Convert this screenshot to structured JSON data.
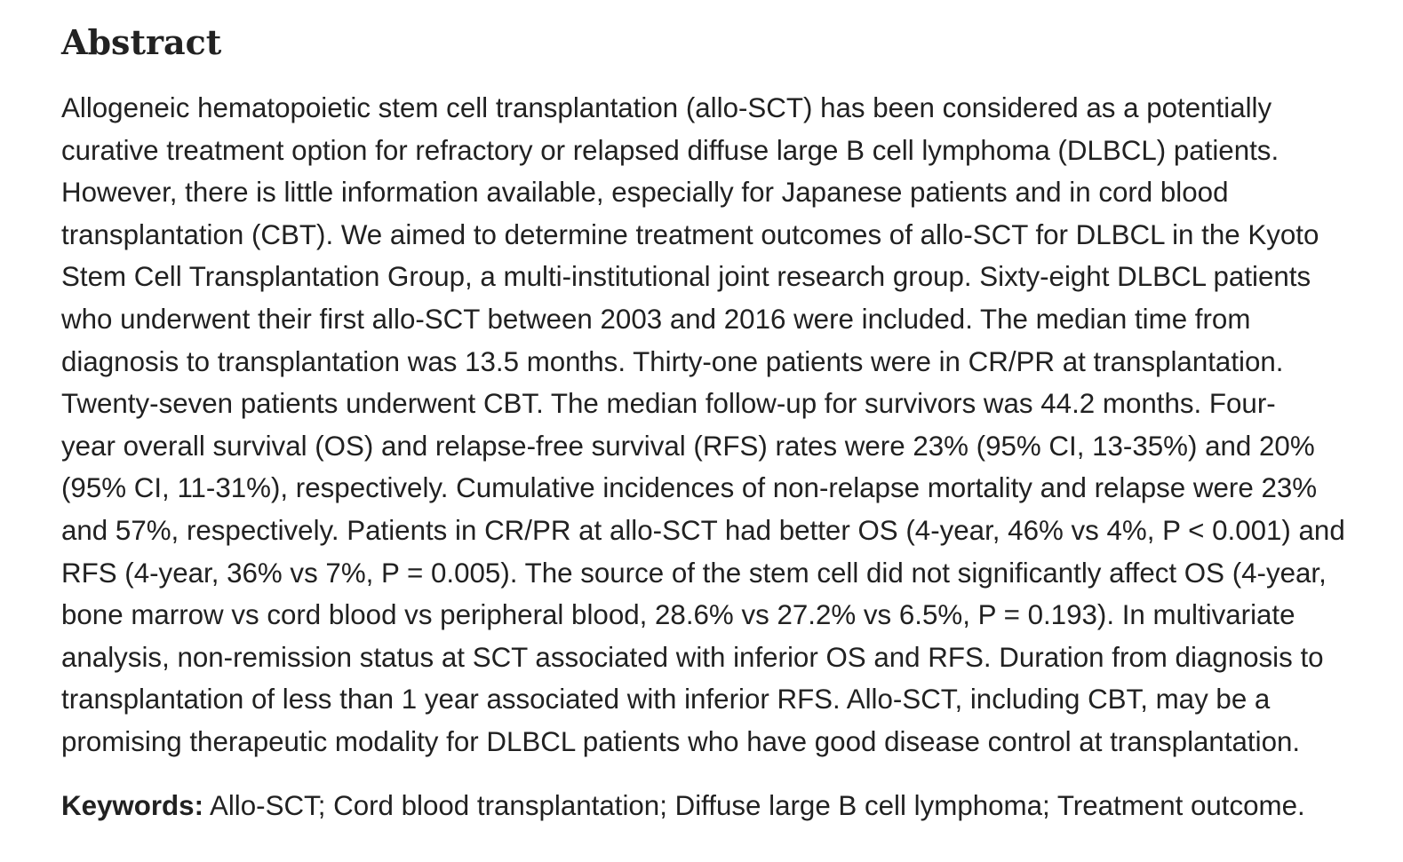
{
  "abstract": {
    "heading": "Abstract",
    "lines": [
      "Allogeneic hematopoietic stem cell transplantation (allo-SCT) has been considered as a potentially",
      "curative treatment option for refractory or relapsed diffuse large B cell lymphoma (DLBCL) patients.",
      "However, there is little information available, especially for Japanese patients and in cord blood",
      "transplantation (CBT). We aimed to determine treatment outcomes of allo-SCT for DLBCL in the Kyoto",
      "Stem Cell Transplantation Group, a multi-institutional joint research group. Sixty-eight DLBCL patients",
      "who underwent their first allo-SCT between 2003 and 2016 were included. The median time from",
      "diagnosis to transplantation was 13.5 months. Thirty-one patients were in CR/PR at transplantation.",
      "Twenty-seven patients underwent CBT. The median follow-up for survivors was 44.2 months. Four-",
      "year overall survival (OS) and relapse-free survival (RFS) rates were 23% (95% CI, 13-35%) and 20%",
      "(95% CI, 11-31%), respectively. Cumulative incidences of non-relapse mortality and relapse were 23%",
      "and 57%, respectively. Patients in CR/PR at allo-SCT had better OS (4-year, 46% vs 4%, P < 0.001) and",
      "RFS (4-year, 36% vs 7%, P = 0.005). The source of the stem cell did not significantly affect OS (4-year,",
      "bone marrow vs cord blood vs peripheral blood, 28.6% vs 27.2% vs 6.5%, P = 0.193). In multivariate",
      "analysis, non-remission status at SCT associated with inferior OS and RFS. Duration from diagnosis to",
      "transplantation of less than 1 year associated with inferior RFS. Allo-SCT, including CBT, may be a",
      "promising therapeutic modality for DLBCL patients who have good disease control at transplantation."
    ]
  },
  "keywords": {
    "label": "Keywords:",
    "text": " Allo-SCT; Cord blood transplantation; Diffuse large B cell lymphoma; Treatment outcome."
  }
}
